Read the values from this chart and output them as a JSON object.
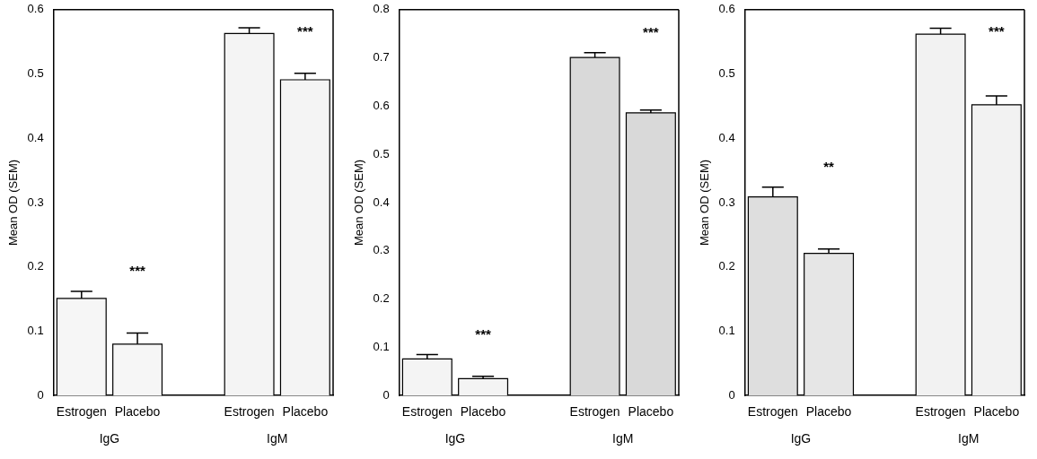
{
  "chart_data": [
    {
      "type": "bar",
      "ylabel": "Mean OD (SEM)",
      "categories": [
        "Estrogen",
        "Placebo",
        null,
        "Estrogen",
        "Placebo"
      ],
      "values": [
        0.151,
        0.08,
        null,
        0.563,
        0.491
      ],
      "errors": [
        0.011,
        0.017,
        null,
        0.009,
        0.01
      ],
      "colors": [
        "#f6f6f6",
        "#f6f6f6",
        null,
        "#f4f4f4",
        "#f4f4f4"
      ],
      "ylim": [
        0,
        0.6
      ],
      "yticks": [
        0,
        0.1,
        0.2,
        0.3,
        0.4,
        0.5,
        0.6
      ],
      "annotations": [
        "***",
        "***",
        "IgG",
        "IgM"
      ]
    },
    {
      "type": "bar",
      "ylabel": "Mean OD (SEM)",
      "categories": [
        "Estrogen",
        "Placebo",
        null,
        "Estrogen",
        "Placebo"
      ],
      "values": [
        0.076,
        0.035,
        null,
        0.701,
        0.586
      ],
      "errors": [
        0.009,
        0.005,
        null,
        0.01,
        0.006
      ],
      "colors": [
        "#f4f4f4",
        "#f4f4f4",
        null,
        "#d9d9d9",
        "#d9d9d9"
      ],
      "ylim": [
        0,
        0.8
      ],
      "yticks": [
        0,
        0.1,
        0.2,
        0.3,
        0.4,
        0.5,
        0.6,
        0.7,
        0.8
      ],
      "annotations": [
        "***",
        "***",
        "IgG",
        "IgM"
      ]
    },
    {
      "type": "bar",
      "ylabel": "Mean OD (SEM)",
      "categories": [
        "Estrogen",
        "Placebo",
        null,
        "Estrogen",
        "Placebo"
      ],
      "values": [
        0.309,
        0.221,
        null,
        0.562,
        0.452
      ],
      "errors": [
        0.015,
        0.007,
        null,
        0.009,
        0.014
      ],
      "colors": [
        "#dedede",
        "#e6e6e6",
        null,
        "#f2f2f2",
        "#f2f2f2"
      ],
      "ylim": [
        0,
        0.6
      ],
      "yticks": [
        0,
        0.1,
        0.2,
        0.3,
        0.4,
        0.5,
        0.6
      ],
      "annotations": [
        "**",
        "***",
        "IgG",
        "IgM"
      ]
    }
  ]
}
